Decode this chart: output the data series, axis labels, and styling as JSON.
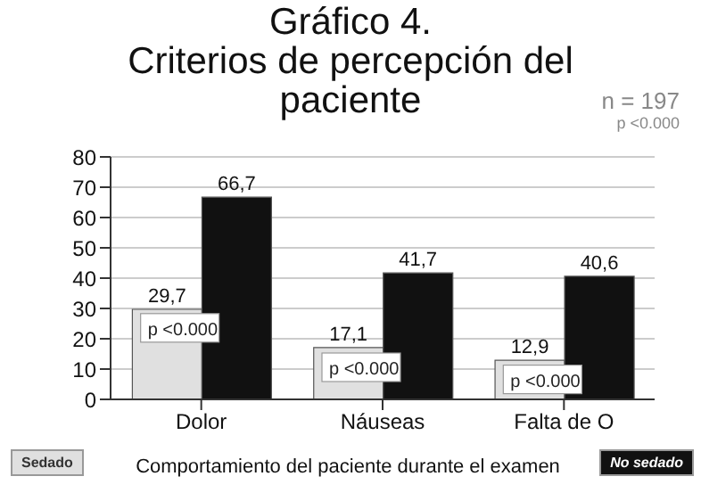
{
  "chart_data": {
    "type": "bar",
    "title": "Gráfico 4.\nCriterios de percepción del\npaciente",
    "xlabel": "Comportamiento del paciente durante el examen",
    "categories": [
      "Dolor",
      "Náuseas",
      "Falta de O"
    ],
    "series": [
      {
        "name": "Sedado",
        "color": "#e0e0e0",
        "values": [
          29.7,
          17.1,
          12.9
        ],
        "value_labels": [
          "29,7",
          "17,1",
          "12,9"
        ]
      },
      {
        "name": "No sedado",
        "color": "#111111",
        "values": [
          66.7,
          41.7,
          40.6
        ],
        "value_labels": [
          "66,7",
          "41,7",
          "40,6"
        ]
      }
    ],
    "ylim": [
      0,
      80
    ],
    "yticks": [
      0,
      10,
      20,
      30,
      40,
      50,
      60,
      70,
      80
    ],
    "grid": "y",
    "legend": "bottom",
    "annotations": [
      "n = 197",
      "p <0.000",
      {
        "text": "p <0.000",
        "x": "Dolor",
        "y": 23
      },
      {
        "text": "p <0.000",
        "x": "Náuseas",
        "y": 10
      },
      {
        "text": "p <0.000",
        "x": "Falta de O",
        "y": 6
      }
    ]
  }
}
